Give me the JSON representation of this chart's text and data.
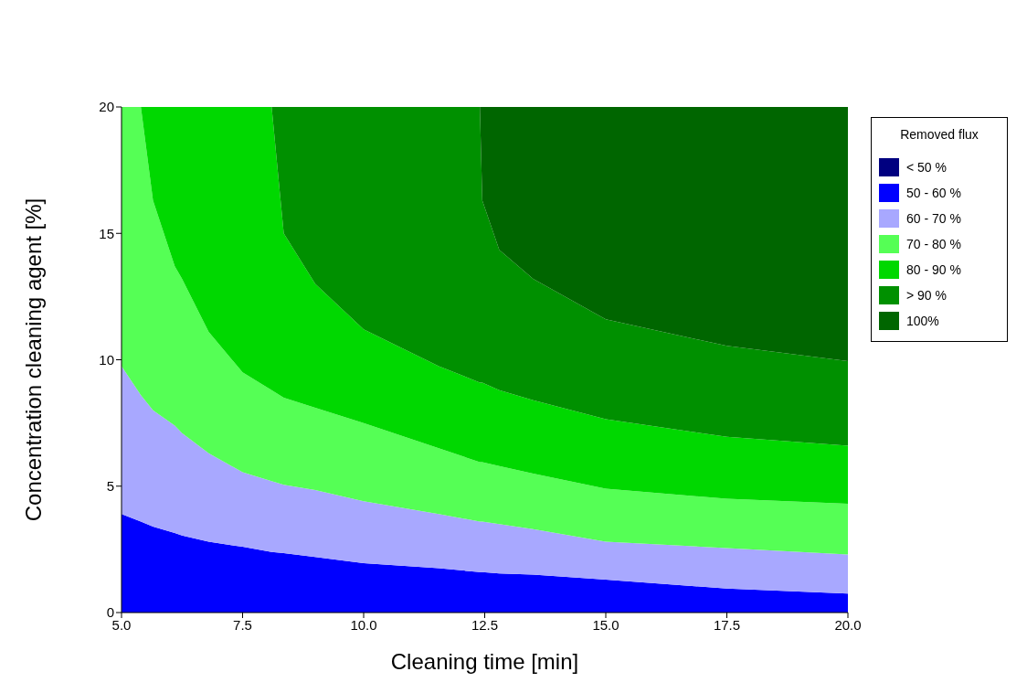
{
  "chart_data": {
    "type": "area",
    "stacked": true,
    "xlabel": "Cleaning time [min]",
    "ylabel": "Concentration cleaning agent [%]",
    "legend_title": "Removed flux",
    "legend": "right",
    "x": [
      5,
      5.4,
      5.65,
      6.1,
      6.25,
      6.8,
      7.5,
      8.1,
      8.35,
      9,
      10,
      11.55,
      12.4,
      12.45,
      12.8,
      13.5,
      15,
      17.5,
      20
    ],
    "xlim": [
      5,
      20
    ],
    "xticks": [
      {
        "value": 5,
        "label": "5.0"
      },
      {
        "value": 7.5,
        "label": "7.5"
      },
      {
        "value": 10,
        "label": "10.0"
      },
      {
        "value": 12.5,
        "label": "12.5"
      },
      {
        "value": 15,
        "label": "15.0"
      },
      {
        "value": 17.5,
        "label": "17.5"
      },
      {
        "value": 20,
        "label": "20.0"
      }
    ],
    "ylim": [
      0,
      20
    ],
    "yticks": [
      0,
      5,
      10,
      15,
      20
    ],
    "series": [
      {
        "name": "< 50 %",
        "color": "#000080",
        "values": [
          null,
          null,
          null,
          null,
          null,
          null,
          null,
          null,
          null,
          null,
          null,
          null,
          null,
          null,
          null,
          null,
          null,
          null,
          null
        ]
      },
      {
        "name": "50 - 60 %",
        "color": "#0000ff",
        "values": [
          3.9,
          3.6,
          3.4,
          3.15,
          3.05,
          2.8,
          2.6,
          2.4,
          2.35,
          2.2,
          1.95,
          1.75,
          1.6,
          1.6,
          1.55,
          1.5,
          1.3,
          0.95,
          0.75
        ]
      },
      {
        "name": "60 - 70 %",
        "color": "#a8a8ff",
        "values": [
          5.85,
          5.0,
          4.6,
          4.25,
          4.05,
          3.5,
          2.95,
          2.8,
          2.7,
          2.65,
          2.45,
          2.15,
          2.0,
          2.0,
          1.95,
          1.8,
          1.5,
          1.6,
          1.55
        ]
      },
      {
        "name": "70 - 80 %",
        "color": "#55ff55",
        "values": [
          10.25,
          11.4,
          8.3,
          6.3,
          6.1,
          4.8,
          3.95,
          3.6,
          3.45,
          3.25,
          3.1,
          2.6,
          2.35,
          2.35,
          2.3,
          2.2,
          2.1,
          1.95,
          2.0
        ]
      },
      {
        "name": "80 - 90 %",
        "color": "#00d800",
        "values": [
          0,
          0,
          3.7,
          6.3,
          6.8,
          8.9,
          10.5,
          11.2,
          6.5,
          4.9,
          3.7,
          3.25,
          3.15,
          3.15,
          3.0,
          2.9,
          2.75,
          2.45,
          2.3
        ]
      },
      {
        "name": "> 90 %",
        "color": "#009000",
        "values": [
          0,
          0,
          0,
          0,
          0,
          0,
          0,
          0,
          5.0,
          7.0,
          8.8,
          10.25,
          10.9,
          7.2,
          5.55,
          4.8,
          3.95,
          3.6,
          3.35
        ]
      },
      {
        "name": "100%",
        "color": "#006600",
        "values": [
          0,
          0,
          0,
          0,
          0,
          0,
          0,
          0,
          0,
          0,
          0,
          0,
          0,
          3.7,
          5.65,
          6.8,
          8.4,
          9.45,
          10.05
        ]
      }
    ]
  }
}
